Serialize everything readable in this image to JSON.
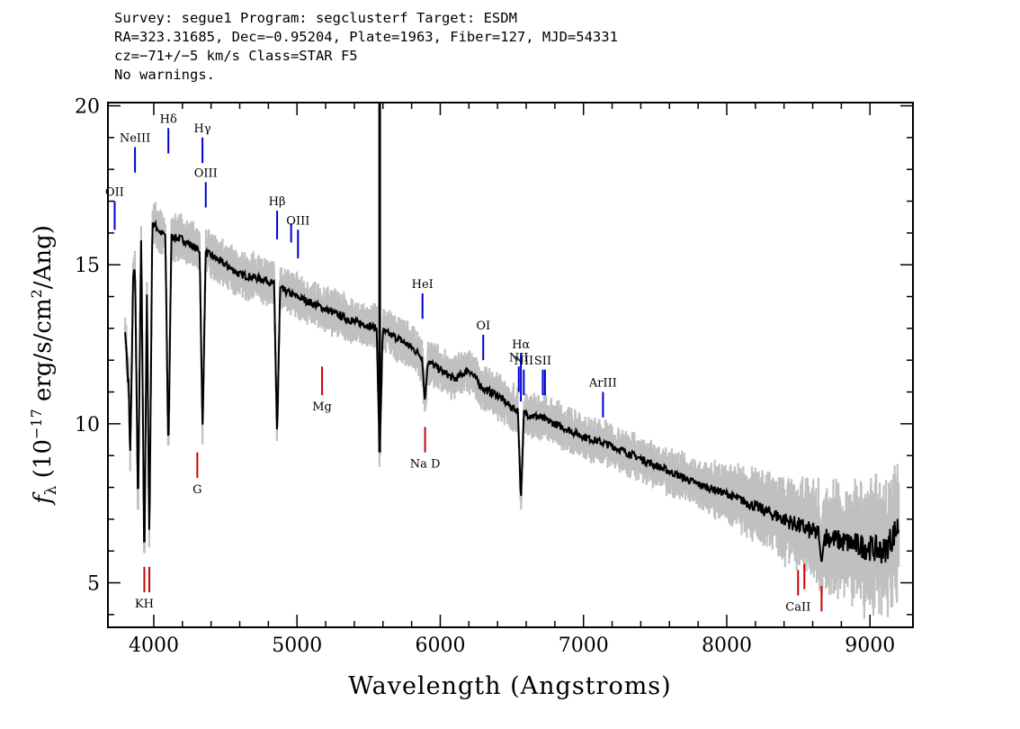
{
  "header": {
    "line1": "Survey: segue1 Program: segclusterf Target: ESDM",
    "line2": "RA=323.31685, Dec=−0.95204, Plate=1963, Fiber=127, MJD=54331",
    "line3": "cz=−71+/−5 km/s Class=STAR F5",
    "line4": "No warnings."
  },
  "chart_data": {
    "type": "line",
    "title": "",
    "xlabel": "Wavelength (Angstroms)",
    "ylabel": "f_λ (10^-17 erg/s/cm^2/Ang)",
    "xlim": [
      3680,
      9300
    ],
    "ylim": [
      3.6,
      20.1
    ],
    "x_ticks": [
      4000,
      5000,
      6000,
      7000,
      8000,
      9000
    ],
    "y_ticks": [
      5,
      10,
      15,
      20
    ],
    "colors": {
      "flux": "#000000",
      "noise": "#c0c0c0",
      "emission": "#0000cc",
      "absorption": "#cc0000"
    },
    "series": [
      {
        "x": [
          3800,
          3850,
          3900,
          3950,
          4000,
          4050,
          4100,
          4200,
          4300,
          4400,
          4500,
          4600,
          4700,
          4800,
          4900,
          5000,
          5100,
          5200,
          5300,
          5400,
          5500,
          5600,
          5700,
          5800,
          5900,
          6000,
          6100,
          6200,
          6300,
          6400,
          6500,
          6600,
          6700,
          6800,
          6900,
          7000,
          7200,
          7400,
          7600,
          7800,
          8000,
          8200,
          8400,
          8600,
          8800,
          9000,
          9100,
          9200
        ],
        "y": [
          13.0,
          14.5,
          15.6,
          15.9,
          16.3,
          16.0,
          15.9,
          15.8,
          15.5,
          15.3,
          15.0,
          14.7,
          14.6,
          14.5,
          14.2,
          14.0,
          13.8,
          13.6,
          13.4,
          13.2,
          13.1,
          12.9,
          12.7,
          12.4,
          12.0,
          11.7,
          11.4,
          11.7,
          11.1,
          10.9,
          10.5,
          10.3,
          10.2,
          10.0,
          9.8,
          9.6,
          9.3,
          8.9,
          8.5,
          8.1,
          7.8,
          7.4,
          7.0,
          6.6,
          6.3,
          6.1,
          6.0,
          6.8
        ]
      }
    ],
    "absorption_features": [
      {
        "x": 3820,
        "y": 11.3
      },
      {
        "x": 3835,
        "y": 8.9
      },
      {
        "x": 3890,
        "y": 7.2
      },
      {
        "x": 3934,
        "y": 5.3
      },
      {
        "x": 3969,
        "y": 6.2
      },
      {
        "x": 4102,
        "y": 9.0
      },
      {
        "x": 4341,
        "y": 9.7
      },
      {
        "x": 4861,
        "y": 9.6
      },
      {
        "x": 5577,
        "y": 9.0
      },
      {
        "x": 5893,
        "y": 10.7
      },
      {
        "x": 6563,
        "y": 7.6
      },
      {
        "x": 8662,
        "y": 5.6
      }
    ],
    "sky_spike": {
      "x": 5577,
      "y": 20.1
    },
    "emission_lines": [
      {
        "label": "OII",
        "x": 3727,
        "y0": 16.1,
        "y1": 17.0
      },
      {
        "label": "NeIII",
        "x": 3869,
        "y0": 17.9,
        "y1": 18.7
      },
      {
        "label": "Hδ",
        "x": 4102,
        "y0": 18.5,
        "y1": 19.3
      },
      {
        "label": "Hγ",
        "x": 4340,
        "y0": 18.2,
        "y1": 19.0
      },
      {
        "label": "OIII",
        "x": 4363,
        "y0": 16.8,
        "y1": 17.6
      },
      {
        "label": "Hβ",
        "x": 4861,
        "y0": 15.8,
        "y1": 16.7
      },
      {
        "label": "",
        "x": 4959,
        "y0": 15.7,
        "y1": 16.3
      },
      {
        "label": "OIII",
        "x": 5007,
        "y0": 15.2,
        "y1": 16.1
      },
      {
        "label": "HeI",
        "x": 5876,
        "y0": 13.3,
        "y1": 14.1
      },
      {
        "label": "OI",
        "x": 6300,
        "y0": 12.0,
        "y1": 12.8
      },
      {
        "label": "NII",
        "x": 6548,
        "y0": 11.0,
        "y1": 11.8
      },
      {
        "label": "Hα",
        "x": 6563,
        "y0": 10.7,
        "y1": 12.2
      },
      {
        "label": "NII",
        "x": 6583,
        "y0": 10.9,
        "y1": 11.7
      },
      {
        "label": "SII",
        "x": 6716,
        "y0": 10.9,
        "y1": 11.7
      },
      {
        "label": "",
        "x": 6731,
        "y0": 10.9,
        "y1": 11.7
      },
      {
        "label": "ArIII",
        "x": 7136,
        "y0": 10.2,
        "y1": 11.0
      }
    ],
    "absorption_lines": [
      {
        "label": "KH",
        "x": 3934,
        "y0": 4.7,
        "y1": 5.5
      },
      {
        "label": "",
        "x": 3969,
        "y0": 4.7,
        "y1": 5.5
      },
      {
        "label": "G",
        "x": 4304,
        "y0": 8.3,
        "y1": 9.1
      },
      {
        "label": "Mg",
        "x": 5175,
        "y0": 10.9,
        "y1": 11.8
      },
      {
        "label": "Na D",
        "x": 5894,
        "y0": 9.1,
        "y1": 9.9
      },
      {
        "label": "CaII",
        "x": 8498,
        "y0": 4.6,
        "y1": 5.4
      },
      {
        "label": "",
        "x": 8542,
        "y0": 4.8,
        "y1": 5.6
      },
      {
        "label": "",
        "x": 8662,
        "y0": 4.1,
        "y1": 4.9
      }
    ]
  }
}
